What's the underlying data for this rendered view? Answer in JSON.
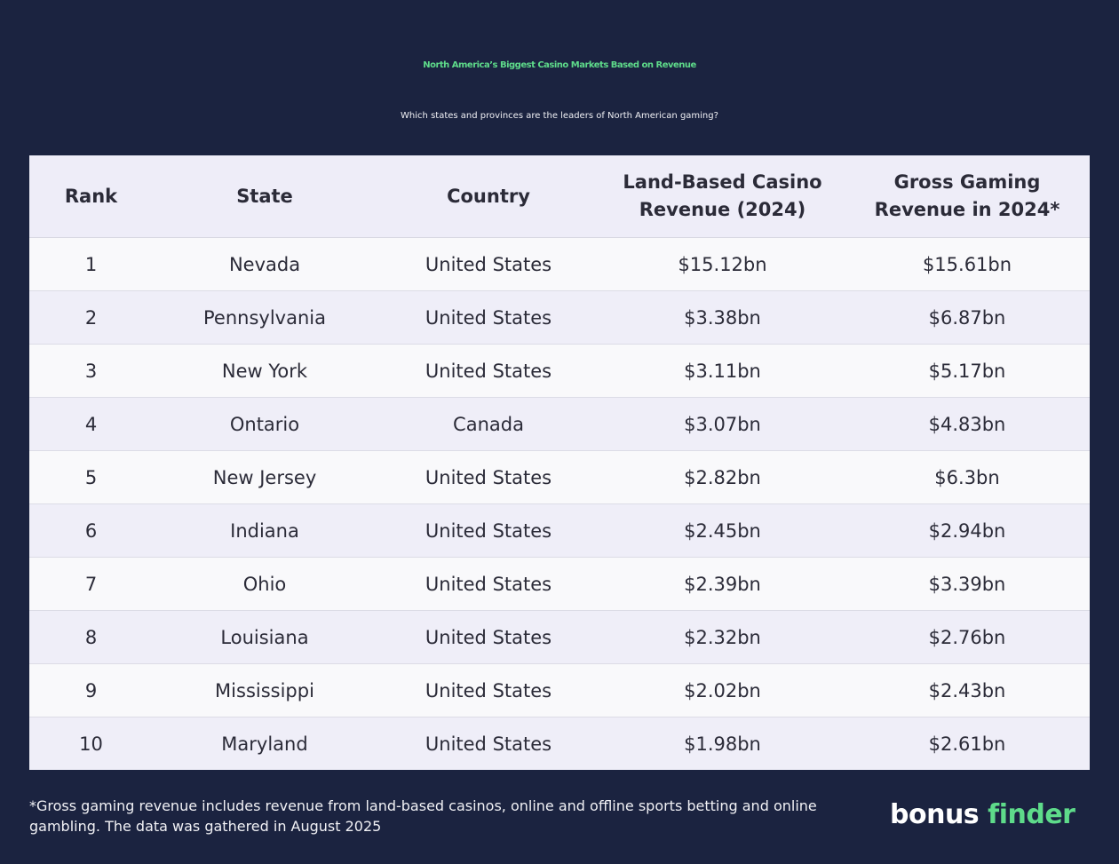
{
  "header": {
    "title": "North America’s Biggest Casino Markets Based on Revenue",
    "subtitle": "Which states and provinces are the leaders of North American gaming?"
  },
  "chart_data": {
    "type": "table",
    "title": "North America’s Biggest Casino Markets Based on Revenue",
    "subtitle": "Which states and provinces are the leaders of North American gaming?",
    "columns": [
      [
        "Rank"
      ],
      [
        "State"
      ],
      [
        "Country"
      ],
      [
        "Land-Based Casino",
        "Revenue (2024)"
      ],
      [
        "Gross Gaming",
        "Revenue in 2024*"
      ]
    ],
    "rows": [
      [
        "1",
        "Nevada",
        "United States",
        "$15.12bn",
        "$15.61bn"
      ],
      [
        "2",
        "Pennsylvania",
        "United States",
        "$3.38bn",
        "$6.87bn"
      ],
      [
        "3",
        "New York",
        "United States",
        "$3.11bn",
        "$5.17bn"
      ],
      [
        "4",
        "Ontario",
        "Canada",
        "$3.07bn",
        "$4.83bn"
      ],
      [
        "5",
        "New Jersey",
        "United States",
        "$2.82bn",
        "$6.3bn"
      ],
      [
        "6",
        "Indiana",
        "United States",
        "$2.45bn",
        "$2.94bn"
      ],
      [
        "7",
        "Ohio",
        "United States",
        "$2.39bn",
        "$3.39bn"
      ],
      [
        "8",
        "Louisiana",
        "United States",
        "$2.32bn",
        "$2.76bn"
      ],
      [
        "9",
        "Mississippi",
        "United States",
        "$2.02bn",
        "$2.43bn"
      ],
      [
        "10",
        "Maryland",
        "United States",
        "$1.98bn",
        "$2.61bn"
      ]
    ],
    "units": "billion USD"
  },
  "footnote": {
    "line1": "*Gross gaming revenue includes revenue from land-based casinos, online and offline sports betting and online",
    "line2": "gambling. The data was gathered in August 2025"
  },
  "logo": {
    "text_part1": "bonus",
    "text_part2": "finder"
  },
  "colors": {
    "background": "#1b2340",
    "accent_green": "#5edb8a",
    "header_row": "#eeedf8",
    "row_light": "#f9f9fb",
    "row_alt": "#efeef8",
    "text_dark": "#2b2b38"
  }
}
